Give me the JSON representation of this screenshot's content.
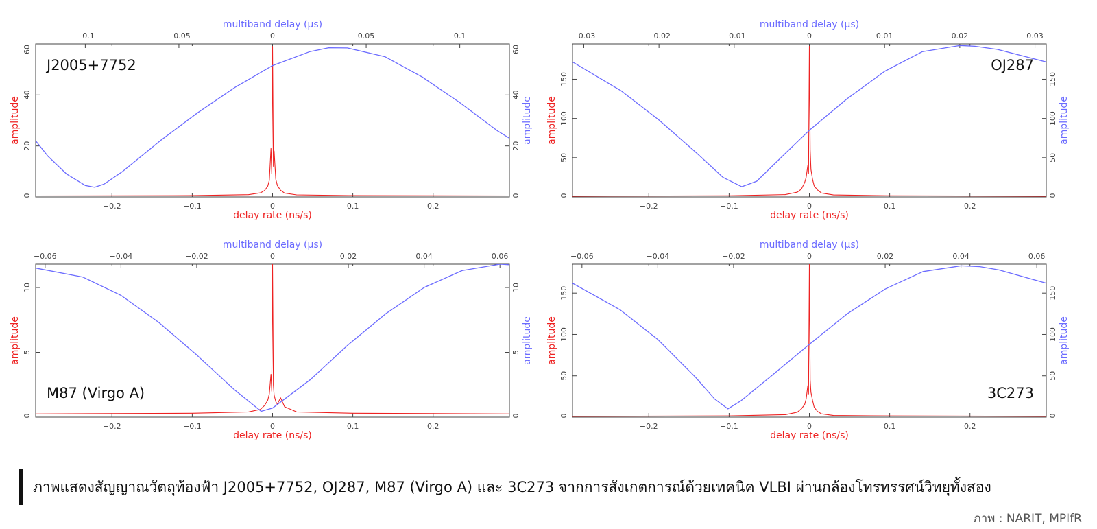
{
  "caption": "ภาพแสดงสัญญาณวัตถุท้องฟ้า J2005+7752, OJ287, M87 (Virgo A) และ 3C273 จากการสังเกตการณ์ด้วยเทคนิค VLBI ผ่านกล้องโทรทรรศน์วิทยุทั้งสอง",
  "credit": "ภาพ : NARIT, MPIfR",
  "colors": {
    "rate_series": "#ee2222",
    "delay_series": "#6b6bff",
    "axis": "#444444"
  },
  "chart_data": [
    {
      "type": "line",
      "title": "J2005+7752",
      "xlabel": "delay rate (ns/s)",
      "x2label": "multiband delay (μs)",
      "ylabel": "amplitude",
      "y2label": "amplitude",
      "xlim": [
        -0.295,
        0.295
      ],
      "x2lim": [
        -0.1265,
        0.1265
      ],
      "ylim": [
        0,
        60
      ],
      "xticks": [
        -0.2,
        -0.1,
        0,
        0.1,
        0.2
      ],
      "xtick_labels": [
        "−0.2",
        "−0.1",
        "0",
        "0.1",
        "0.2"
      ],
      "x2ticks": [
        -0.1,
        -0.05,
        0,
        0.05,
        0.1
      ],
      "x2tick_labels": [
        "−0.1",
        "−0.05",
        "0",
        "0.05",
        "0.1"
      ],
      "yticks": [
        0,
        20,
        40,
        60
      ],
      "ytick_labels": [
        "0",
        "20",
        "40",
        "60"
      ],
      "label_position": "top-left",
      "series": [
        {
          "axis": "bottom",
          "x": [
            -0.295,
            -0.1,
            -0.03,
            -0.015,
            -0.01,
            -0.006,
            -0.004,
            -0.002,
            -0.001,
            0,
            0.001,
            0.002,
            0.004,
            0.006,
            0.01,
            0.015,
            0.03,
            0.1,
            0.295
          ],
          "y": [
            0.4,
            0.5,
            0.9,
            1.6,
            2.5,
            4.2,
            6.5,
            19,
            9,
            59,
            12,
            18,
            7,
            4.5,
            2.6,
            1.5,
            0.8,
            0.5,
            0.4
          ]
        },
        {
          "axis": "top",
          "x": [
            -0.1265,
            -0.12,
            -0.11,
            -0.1,
            -0.095,
            -0.09,
            -0.08,
            -0.06,
            -0.04,
            -0.02,
            0,
            0.02,
            0.03,
            0.04,
            0.06,
            0.08,
            0.1,
            0.12,
            0.1265
          ],
          "y": [
            22,
            16,
            9,
            4.5,
            3.8,
            5,
            10,
            22,
            33,
            43,
            51.5,
            57,
            58.5,
            58.4,
            55,
            47,
            37,
            26,
            23
          ]
        }
      ]
    },
    {
      "type": "line",
      "title": "OJ287",
      "xlabel": "delay rate (ns/s)",
      "x2label": "multiband delay (μs)",
      "ylabel": "amplitude",
      "y2label": "amplitude",
      "xlim": [
        -0.295,
        0.295
      ],
      "x2lim": [
        -0.0315,
        0.0315
      ],
      "ylim": [
        0,
        195
      ],
      "xticks": [
        -0.2,
        -0.1,
        0,
        0.1,
        0.2
      ],
      "xtick_labels": [
        "−0.2",
        "−0.1",
        "0",
        "0.1",
        "0.2"
      ],
      "x2ticks": [
        -0.03,
        -0.02,
        -0.01,
        0,
        0.01,
        0.02,
        0.03
      ],
      "x2tick_labels": [
        "−0.03",
        "−0.02",
        "−0.01",
        "0",
        "0.01",
        "0.02",
        "0.03"
      ],
      "yticks": [
        0,
        50,
        100,
        150
      ],
      "ytick_labels": [
        "0",
        "50",
        "100",
        "150"
      ],
      "label_position": "top-right",
      "series": [
        {
          "axis": "bottom",
          "x": [
            -0.295,
            -0.1,
            -0.03,
            -0.015,
            -0.01,
            -0.006,
            -0.004,
            -0.002,
            -0.001,
            0,
            0.001,
            0.002,
            0.004,
            0.006,
            0.01,
            0.015,
            0.03,
            0.1,
            0.295
          ],
          "y": [
            1,
            1.5,
            3,
            6,
            10,
            18,
            25,
            40,
            30,
            192,
            60,
            35,
            22,
            14,
            9,
            5,
            2.5,
            1.5,
            1
          ]
        },
        {
          "axis": "top",
          "x": [
            -0.0315,
            -0.025,
            -0.02,
            -0.015,
            -0.0115,
            -0.009,
            -0.007,
            -0.004,
            0,
            0.005,
            0.01,
            0.015,
            0.02,
            0.022,
            0.025,
            0.0315
          ],
          "y": [
            172,
            135,
            98,
            56,
            25,
            13,
            20,
            48,
            85,
            125,
            160,
            185,
            193,
            192,
            188,
            172
          ]
        }
      ]
    },
    {
      "type": "line",
      "title": "M87 (Virgo A)",
      "xlabel": "delay rate (ns/s)",
      "x2label": "multiband delay (μs)",
      "ylabel": "amplitude",
      "y2label": "amplitude",
      "xlim": [
        -0.295,
        0.295
      ],
      "x2lim": [
        -0.0625,
        0.0625
      ],
      "ylim": [
        0,
        11.8
      ],
      "xticks": [
        -0.2,
        -0.1,
        0,
        0.1,
        0.2
      ],
      "xtick_labels": [
        "−0.2",
        "−0.1",
        "0",
        "0.1",
        "0.2"
      ],
      "x2ticks": [
        -0.06,
        -0.04,
        -0.02,
        0,
        0.02,
        0.04,
        0.06
      ],
      "x2tick_labels": [
        "−0.06",
        "−0.04",
        "−0.02",
        "0",
        "0.02",
        "0.04",
        "0.06"
      ],
      "yticks": [
        0,
        5,
        10
      ],
      "ytick_labels": [
        "0",
        "5",
        "10"
      ],
      "label_position": "bottom-left",
      "series": [
        {
          "axis": "bottom",
          "x": [
            -0.295,
            -0.1,
            -0.03,
            -0.015,
            -0.01,
            -0.006,
            -0.004,
            -0.002,
            -0.001,
            0,
            0.001,
            0.002,
            0.004,
            0.006,
            0.01,
            0.015,
            0.03,
            0.1,
            0.295
          ],
          "y": [
            0.25,
            0.3,
            0.4,
            0.6,
            0.9,
            1.3,
            1.8,
            3.3,
            2,
            11.8,
            2.5,
            1.7,
            1.2,
            1,
            1.5,
            0.8,
            0.4,
            0.3,
            0.25
          ]
        },
        {
          "axis": "top",
          "x": [
            -0.0625,
            -0.05,
            -0.04,
            -0.03,
            -0.02,
            -0.01,
            -0.003,
            0,
            0.01,
            0.02,
            0.03,
            0.04,
            0.05,
            0.06,
            0.0625
          ],
          "y": [
            11.5,
            10.8,
            9.4,
            7.3,
            4.8,
            2.1,
            0.45,
            0.7,
            2.9,
            5.6,
            8,
            10,
            11.3,
            11.8,
            11.75
          ]
        }
      ]
    },
    {
      "type": "line",
      "title": "3C273",
      "xlabel": "delay rate (ns/s)",
      "x2label": "multiband delay (μs)",
      "ylabel": "amplitude",
      "y2label": "amplitude",
      "xlim": [
        -0.295,
        0.295
      ],
      "x2lim": [
        -0.0625,
        0.0625
      ],
      "ylim": [
        0,
        185
      ],
      "xticks": [
        -0.2,
        -0.1,
        0,
        0.1,
        0.2
      ],
      "xtick_labels": [
        "−0.2",
        "−0.1",
        "0",
        "0.1",
        "0.2"
      ],
      "x2ticks": [
        -0.06,
        -0.04,
        -0.02,
        0,
        0.02,
        0.04,
        0.06
      ],
      "x2tick_labels": [
        "−0.06",
        "−0.04",
        "−0.02",
        "0",
        "0.02",
        "0.04",
        "0.06"
      ],
      "yticks": [
        0,
        50,
        100,
        150
      ],
      "ytick_labels": [
        "0",
        "50",
        "100",
        "150"
      ],
      "label_position": "bottom-right",
      "series": [
        {
          "axis": "bottom",
          "x": [
            -0.295,
            -0.1,
            -0.03,
            -0.015,
            -0.01,
            -0.006,
            -0.004,
            -0.002,
            -0.001,
            0,
            0.001,
            0.002,
            0.004,
            0.006,
            0.01,
            0.015,
            0.03,
            0.1,
            0.295
          ],
          "y": [
            1,
            1.5,
            3,
            6,
            10,
            15,
            22,
            38,
            28,
            185,
            45,
            30,
            20,
            12,
            7,
            4,
            2,
            1.5,
            1
          ]
        },
        {
          "axis": "top",
          "x": [
            -0.0625,
            -0.05,
            -0.04,
            -0.03,
            -0.025,
            -0.0215,
            -0.018,
            -0.01,
            0,
            0.01,
            0.02,
            0.03,
            0.04,
            0.045,
            0.05,
            0.0625
          ],
          "y": [
            162,
            130,
            94,
            48,
            22,
            10,
            20,
            50,
            88,
            125,
            155,
            176,
            183,
            182,
            178,
            162
          ]
        }
      ]
    }
  ]
}
